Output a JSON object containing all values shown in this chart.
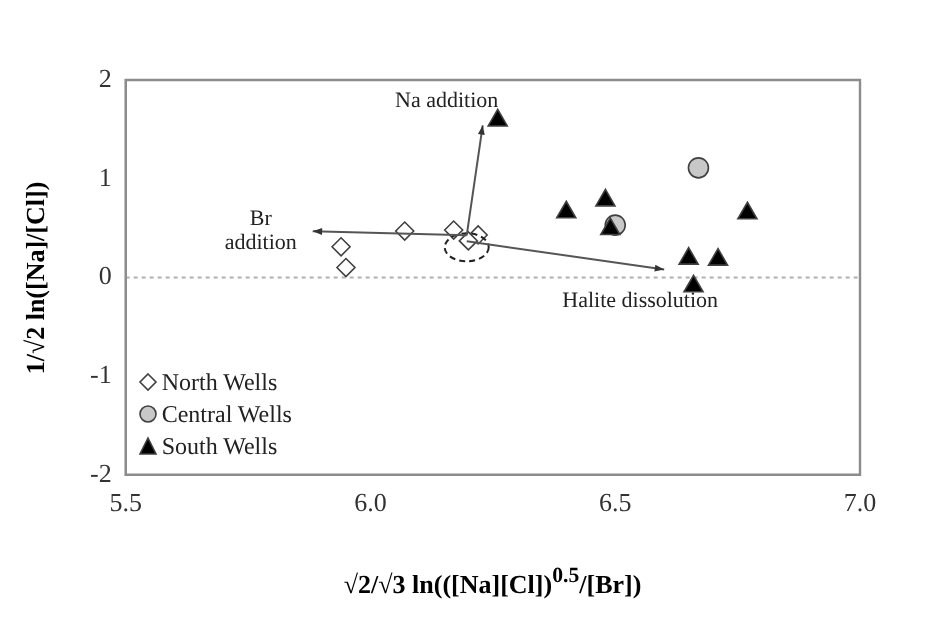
{
  "chart_data": {
    "type": "scatter",
    "xlabel": "√2/√3 ln(([Na][Cl])$^{0.5}$/[Br])",
    "ylabel": "1/√2 ln([Na]/[Cl])",
    "xlim": [
      5.5,
      7.0
    ],
    "xticks": [
      5.5,
      {
        "value": 6.0,
        "label": "6.0"
      },
      6.5,
      {
        "value": 7.0,
        "label": "7.0"
      }
    ],
    "ylim": [
      -2,
      2
    ],
    "yticks": [
      -2,
      -1,
      0,
      1,
      2
    ],
    "grid": false,
    "legend": "bottom left",
    "ref_lines": [
      {
        "axis": "y",
        "value": 0,
        "color": "#b0b0b0",
        "line_style": "dotted"
      }
    ],
    "annotations": [
      "Na addition",
      "Br\naddition",
      {
        "text": "Halite dissolution",
        "x": 6.6,
        "y": 0.08
      }
    ],
    "series": [
      {
        "name": "North Wells",
        "color": "#ffffff",
        "marker": "diamond",
        "x": [
          5.94,
          5.95,
          6.07,
          6.17,
          6.22,
          6.2
        ],
        "values": [
          0.31,
          0.1,
          0.47,
          0.48,
          0.43,
          0.37
        ]
      },
      {
        "name": "Central Wells",
        "color": "#c8c8c8",
        "marker": "circle",
        "x": [
          6.67,
          6.5
        ],
        "values": [
          1.11,
          0.53
        ]
      },
      {
        "name": "South Wells",
        "color": "#000000",
        "marker": "triangle",
        "x": [
          6.26,
          6.4,
          6.48,
          6.49,
          6.65,
          6.71,
          6.66,
          6.77
        ],
        "values": [
          1.59,
          0.66,
          0.78,
          0.49,
          0.19,
          0.18,
          -0.09,
          0.65
        ]
      }
    ]
  }
}
